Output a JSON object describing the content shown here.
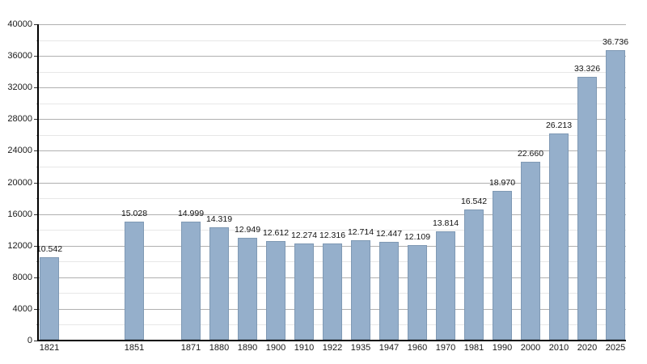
{
  "chart_data": {
    "type": "bar",
    "title": "",
    "xlabel": "",
    "ylabel": "",
    "categories": [
      "1821",
      "1851",
      "1871",
      "1880",
      "1890",
      "1900",
      "1910",
      "1922",
      "1935",
      "1947",
      "1960",
      "1970",
      "1981",
      "1990",
      "2000",
      "2010",
      "2020",
      "2025"
    ],
    "values": [
      10542,
      15028,
      14999,
      14319,
      12949,
      12612,
      12274,
      12316,
      12714,
      12447,
      12109,
      13814,
      16542,
      18970,
      22660,
      26213,
      33326,
      36736
    ],
    "value_labels": [
      "10.542",
      "15.028",
      "14.999",
      "14.319",
      "12.949",
      "12.612",
      "12.274",
      "12.316",
      "12.714",
      "12.447",
      "12.109",
      "13.814",
      "16.542",
      "18.970",
      "22.660",
      "26.213",
      "33.326",
      "36.736"
    ],
    "slot_offsets": [
      0,
      3,
      5,
      6,
      7,
      8,
      9,
      10,
      11,
      12,
      13,
      14,
      15,
      16,
      17,
      18,
      19,
      20
    ],
    "total_slots": 21,
    "ylim": [
      0,
      40000
    ],
    "y_major_step": 4000,
    "y_minor_step": 2000,
    "y_tick_labels": [
      "0",
      "4000",
      "8000",
      "12000",
      "16000",
      "20000",
      "24000",
      "28000",
      "32000",
      "36000",
      "40000"
    ],
    "grid": true,
    "legend": "none",
    "colors": {
      "bar_fill": "#95afcb",
      "bar_border": "#7f99b4",
      "grid_major": "#b0b0b0",
      "grid_minor": "#e7e7e7",
      "axis": "#000000",
      "text": "#1a1a1a",
      "background": "#ffffff"
    }
  }
}
